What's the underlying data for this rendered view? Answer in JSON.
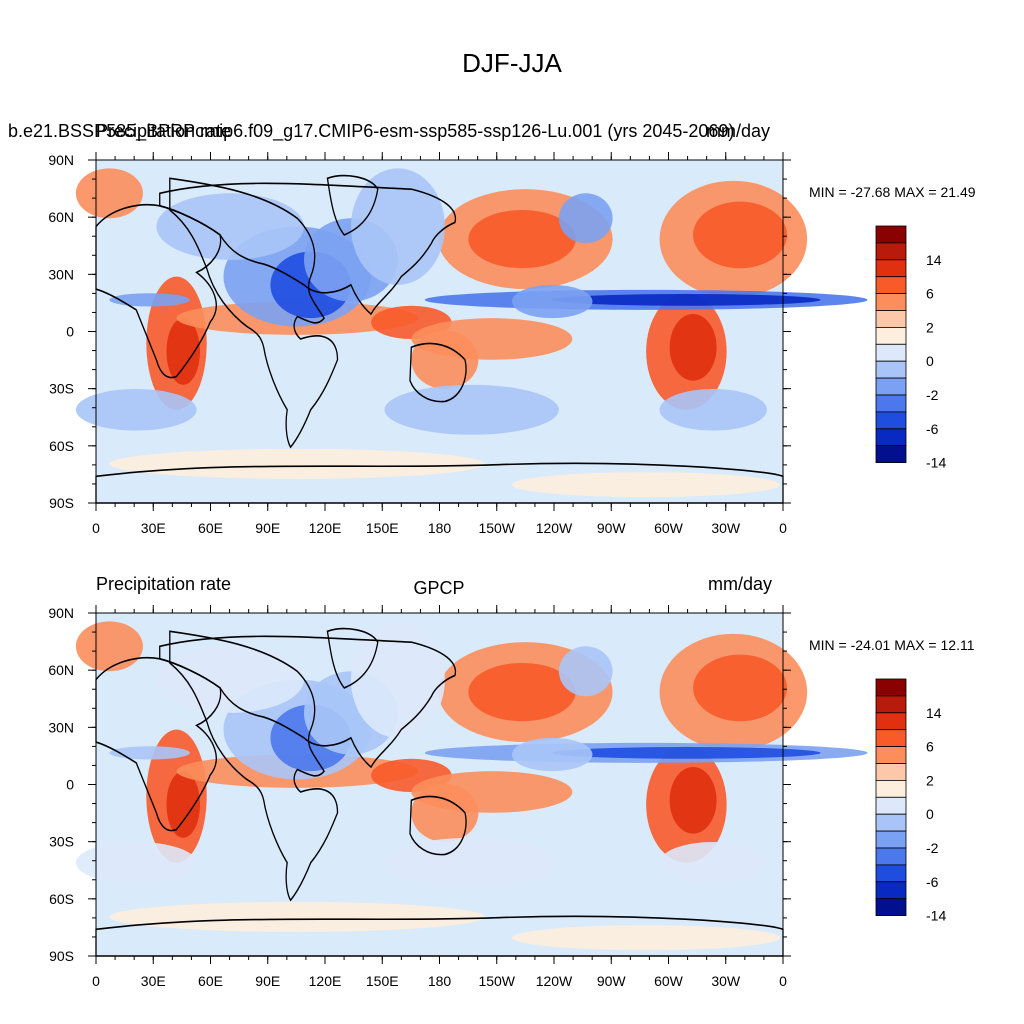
{
  "figure_title": "DJF-JJA",
  "panels": [
    {
      "left_title": "Precipitation rate",
      "left_overprint": "b.e21.BSSP585_BPRPcmip6.f09_g17.CMIP6-esm-ssp585-ssp126-Lu.001 (yrs 2045-2069)",
      "center_title": "",
      "right_title": "mm/day",
      "min_max": "MIN = -27.68 MAX =  21.49"
    },
    {
      "left_title": "Precipitation rate",
      "left_overprint": "",
      "center_title": "GPCP",
      "right_title": "mm/day",
      "min_max": "MIN = -24.01 MAX =  12.11"
    }
  ],
  "axes": {
    "lat_ticks": [
      "90N",
      "60N",
      "30N",
      "0",
      "30S",
      "60S",
      "90S"
    ],
    "lon_ticks": [
      "0",
      "30E",
      "60E",
      "90E",
      "120E",
      "150E",
      "180",
      "150W",
      "120W",
      "90W",
      "60W",
      "30W",
      "0"
    ]
  },
  "colorbar": {
    "colors": [
      "#8b0000",
      "#b81b0b",
      "#e03010",
      "#f85a2a",
      "#fc8e5c",
      "#fdc7aa",
      "#fdeedd",
      "#dde9fb",
      "#a9c5f7",
      "#7ba1f2",
      "#4b78ec",
      "#1f4de0",
      "#0829c2",
      "#02108f"
    ],
    "labels": [
      "14",
      "6",
      "2",
      "0",
      "-2",
      "-6",
      "-14"
    ]
  },
  "palette": {
    "ocean_background": "#d9eafb",
    "coastline": "#000000"
  }
}
